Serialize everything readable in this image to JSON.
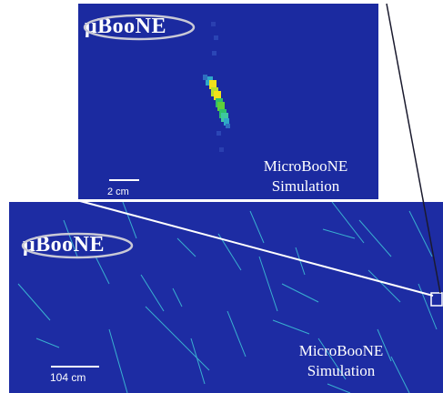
{
  "top_panel": {
    "logo": "μBooNE",
    "sim_line1": "MicroBooNE",
    "sim_line2": "Simulation",
    "scale_label": "2 cm"
  },
  "bottom_panel": {
    "logo": "μBooNE",
    "sim_line1": "MicroBooNE",
    "sim_line2": "Simulation",
    "scale_label": "104 cm"
  },
  "colors": {
    "background_blue": "#1b2aa0",
    "track_cyan": "#3ec7d8",
    "hit_yellow": "#f2e11a",
    "hit_green": "#2fbf6a"
  }
}
